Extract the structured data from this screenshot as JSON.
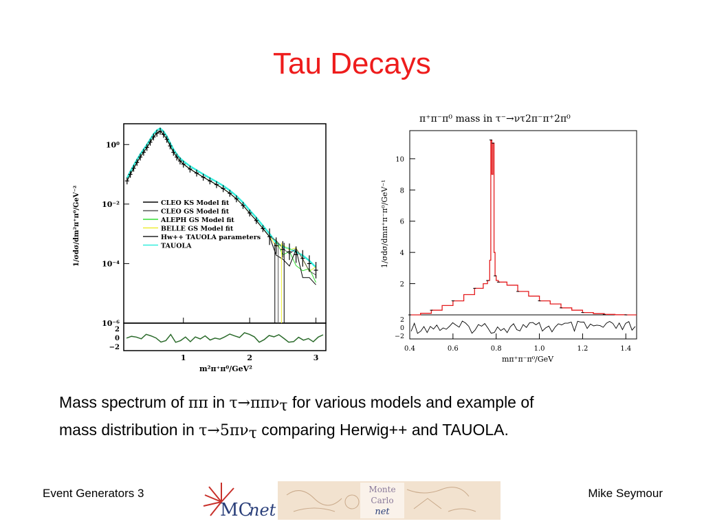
{
  "slide": {
    "title": "Tau Decays",
    "caption": {
      "line1_a": "Mass spectrum of ",
      "line1_pipi": "ππ",
      "line1_b": " in ",
      "line1_decay": "τ→ππν",
      "line1_sub": "τ",
      "line1_c": " for various models and example of",
      "line2_a": "mass distribution in ",
      "line2_decay": "τ→5πν",
      "line2_sub": "τ",
      "line2_b": " comparing Herwig++ and TAUOLA."
    },
    "footer_left": "Event Generators 3",
    "footer_right": "Mike Seymour",
    "logo": {
      "name": "MCnet",
      "mc_text": "MC",
      "net_text": "net",
      "badge": [
        "Monte",
        "Carlo",
        "net"
      ]
    },
    "colors": {
      "title": "#ee1c1c",
      "tauola_line": "#e41a1c",
      "cyan": "#33eedd"
    }
  },
  "chart_data": [
    {
      "type": "line",
      "position": "left",
      "title": "",
      "ylabel": "1/σdσ/dm²π⁺π⁰/GeV⁻²",
      "xlabel": "m²π⁺π⁰/GeV²",
      "yscale": "log",
      "ylim": [
        1e-06,
        5
      ],
      "xlim": [
        0.1,
        3.15
      ],
      "yticks": [
        "10⁰",
        "10⁻²",
        "10⁻⁴",
        "10⁻⁶"
      ],
      "xticks": [
        "1",
        "2",
        "3"
      ],
      "ratio_yticks": [
        "2",
        "0",
        "−2"
      ],
      "legend": {
        "placement": "center-left",
        "entries": [
          {
            "label": "CLEO KS Model fit",
            "color": "#000000"
          },
          {
            "label": "CLEO GS Model fit",
            "color": "#555555"
          },
          {
            "label": "ALEPH GS Model fit",
            "color": "#33dd33"
          },
          {
            "label": "BELLE GS Model fit",
            "color": "#eeee33"
          },
          {
            "label": "Hw++ TAUOLA parameters",
            "color": "#222222"
          },
          {
            "label": "TAUOLA",
            "color": "#33eedd"
          }
        ]
      },
      "data_points": {
        "x": [
          0.15,
          0.2,
          0.25,
          0.3,
          0.35,
          0.4,
          0.45,
          0.5,
          0.55,
          0.6,
          0.65,
          0.7,
          0.75,
          0.8,
          0.85,
          0.9,
          0.95,
          1.0,
          1.1,
          1.2,
          1.3,
          1.4,
          1.5,
          1.6,
          1.7,
          1.8,
          1.9,
          2.0,
          2.1,
          2.2,
          2.3,
          2.4,
          2.5,
          2.6,
          2.7,
          2.8,
          2.9,
          3.0
        ],
        "y": [
          0.06,
          0.1,
          0.16,
          0.25,
          0.38,
          0.55,
          0.8,
          1.2,
          1.8,
          2.4,
          2.8,
          2.2,
          1.5,
          0.9,
          0.55,
          0.38,
          0.28,
          0.22,
          0.15,
          0.11,
          0.08,
          0.06,
          0.045,
          0.033,
          0.023,
          0.015,
          0.009,
          0.005,
          0.0028,
          0.0015,
          0.0008,
          0.0004,
          0.0003,
          0.00025,
          0.0002,
          0.00015,
          0.0001,
          6e-05
        ]
      }
    },
    {
      "type": "line",
      "position": "right",
      "title": "π⁺π⁻π⁰ mass in τ⁻→ντ2π⁻π⁺2π⁰",
      "ylabel": "1/σdσ/dmπ⁺π⁻π⁰/GeV⁻¹",
      "xlabel": "mπ⁺π⁻π⁰/GeV",
      "xlim": [
        0.4,
        1.45
      ],
      "ylim": [
        0,
        11.8
      ],
      "xticks": [
        "0.4",
        "0.6",
        "0.8",
        "1.0",
        "1.2",
        "1.4"
      ],
      "yticks": [
        "2",
        "4",
        "6",
        "8",
        "10"
      ],
      "ratio_yticks": [
        "2",
        "0",
        "−2"
      ],
      "series": [
        {
          "name": "",
          "color": "#e41a1c",
          "x": [
            0.4,
            0.45,
            0.5,
            0.55,
            0.6,
            0.65,
            0.7,
            0.74,
            0.76,
            0.77,
            0.775,
            0.78,
            0.785,
            0.79,
            0.795,
            0.8,
            0.81,
            0.85,
            0.9,
            0.95,
            1.0,
            1.05,
            1.1,
            1.15,
            1.2,
            1.25,
            1.3,
            1.35,
            1.4,
            1.45
          ],
          "y": [
            0.0,
            0.1,
            0.3,
            0.6,
            0.9,
            1.3,
            1.7,
            2.0,
            2.2,
            3.5,
            11.2,
            9.0,
            11.0,
            4.0,
            2.5,
            2.2,
            2.1,
            1.9,
            1.5,
            1.2,
            0.9,
            0.7,
            0.45,
            0.3,
            0.15,
            0.08,
            0.03,
            0.01,
            0.0,
            0.0
          ]
        }
      ]
    }
  ]
}
